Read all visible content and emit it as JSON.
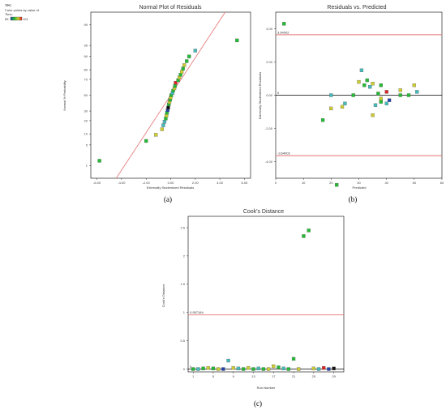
{
  "legend": {
    "title": "TPC",
    "subtitle_line1": "Color points by value of",
    "subtitle_line2": "Time:",
    "range_low": "65",
    "range_high": "113"
  },
  "captions": {
    "a": "(a)",
    "b": "(b)",
    "c": "(c)"
  },
  "colors": {
    "limit_line": "#e57373",
    "fit_line": "#e57373",
    "axis": "#000000"
  },
  "chart_data": [
    {
      "type": "scatter",
      "title": "Normal Plot of Residuals",
      "xlabel": "Externally Studentized Residuals",
      "ylabel": "Normal % Probability",
      "xlim": [
        -6.5,
        6.5
      ],
      "xticks": [
        -6,
        -4,
        -2,
        0,
        2,
        4,
        6
      ],
      "xtick_labels": [
        "-6.00",
        "-4.00",
        "-2.00",
        "0.00",
        "2.00",
        "4.00",
        "6.00"
      ],
      "yticks": [
        1,
        5,
        10,
        20,
        30,
        50,
        70,
        80,
        90,
        95,
        99
      ],
      "ylim": [
        0.3,
        99.7
      ],
      "grid": false,
      "points": [
        {
          "x": -5.8,
          "y": 1.5,
          "c": "#22bb33"
        },
        {
          "x": -2.0,
          "y": 6.5,
          "c": "#22bb33"
        },
        {
          "x": -1.2,
          "y": 9.5,
          "c": "#cccc33"
        },
        {
          "x": -0.7,
          "y": 13,
          "c": "#cccc33"
        },
        {
          "x": -0.6,
          "y": 16,
          "c": "#44bbbb"
        },
        {
          "x": -0.5,
          "y": 19,
          "c": "#44bbbb"
        },
        {
          "x": -0.4,
          "y": 22,
          "c": "#22bb33"
        },
        {
          "x": -0.35,
          "y": 25,
          "c": "#cccc33"
        },
        {
          "x": -0.3,
          "y": 28,
          "c": "#22bb33"
        },
        {
          "x": -0.25,
          "y": 31,
          "c": "#2244aa"
        },
        {
          "x": -0.2,
          "y": 34,
          "c": "#111111"
        },
        {
          "x": -0.15,
          "y": 38,
          "c": "#22bb33"
        },
        {
          "x": -0.1,
          "y": 41,
          "c": "#cccc33"
        },
        {
          "x": -0.05,
          "y": 44,
          "c": "#22bb33"
        },
        {
          "x": 0.0,
          "y": 47,
          "c": "#cccc33"
        },
        {
          "x": 0.05,
          "y": 50,
          "c": "#22bb33"
        },
        {
          "x": 0.15,
          "y": 53,
          "c": "#44bbbb"
        },
        {
          "x": 0.2,
          "y": 56,
          "c": "#22bb33"
        },
        {
          "x": 0.3,
          "y": 59,
          "c": "#cccc33"
        },
        {
          "x": 0.35,
          "y": 62,
          "c": "#22bb33"
        },
        {
          "x": 0.4,
          "y": 66,
          "c": "#dd2222"
        },
        {
          "x": 0.6,
          "y": 69,
          "c": "#22bb33"
        },
        {
          "x": 0.7,
          "y": 72,
          "c": "#cccc33"
        },
        {
          "x": 0.8,
          "y": 75,
          "c": "#22bb33"
        },
        {
          "x": 0.9,
          "y": 78,
          "c": "#cccc33"
        },
        {
          "x": 1.0,
          "y": 81,
          "c": "#22bb33"
        },
        {
          "x": 1.1,
          "y": 84,
          "c": "#cccc33"
        },
        {
          "x": 1.3,
          "y": 87,
          "c": "#22bb33"
        },
        {
          "x": 1.5,
          "y": 90,
          "c": "#22bb33"
        },
        {
          "x": 2.0,
          "y": 93,
          "c": "#44bbbb"
        },
        {
          "x": 5.4,
          "y": 96.5,
          "c": "#22bb33"
        }
      ]
    },
    {
      "type": "scatter",
      "title": "Residuals vs. Predicted",
      "xlabel": "Predicted",
      "ylabel": "Externally Studentized Residuals",
      "xlim": [
        0,
        60
      ],
      "xticks": [
        0,
        10,
        20,
        30,
        40,
        50,
        60
      ],
      "ylim": [
        -5,
        5
      ],
      "yticks": [
        -4,
        -2,
        0,
        2,
        4
      ],
      "ytick_labels": [
        "-4.00",
        "-2.00",
        "0.00",
        "2.00",
        "4.00"
      ],
      "limits": [
        3.64002,
        -3.64002
      ],
      "limit_labels": [
        "3.64002",
        "-3.64002"
      ],
      "zero_label": "0",
      "grid": false,
      "points": [
        {
          "x": 3,
          "y": 4.3,
          "c": "#22bb33"
        },
        {
          "x": 17,
          "y": -1.5,
          "c": "#22bb33"
        },
        {
          "x": 20,
          "y": 0.0,
          "c": "#44bbbb"
        },
        {
          "x": 20,
          "y": -0.8,
          "c": "#cccc33"
        },
        {
          "x": 22,
          "y": -5.4,
          "c": "#22bb33"
        },
        {
          "x": 24,
          "y": -0.7,
          "c": "#cccc33"
        },
        {
          "x": 25,
          "y": -0.5,
          "c": "#44bbbb"
        },
        {
          "x": 28,
          "y": 0.0,
          "c": "#22bb33"
        },
        {
          "x": 30,
          "y": 0.8,
          "c": "#cccc33"
        },
        {
          "x": 31,
          "y": 1.5,
          "c": "#44bbbb"
        },
        {
          "x": 32,
          "y": 0.6,
          "c": "#22bb33"
        },
        {
          "x": 33,
          "y": 0.9,
          "c": "#22bb33"
        },
        {
          "x": 34,
          "y": 0.5,
          "c": "#44bbbb"
        },
        {
          "x": 35,
          "y": 0.7,
          "c": "#cccc33"
        },
        {
          "x": 35,
          "y": -1.2,
          "c": "#cccc33"
        },
        {
          "x": 36,
          "y": -0.6,
          "c": "#44bbbb"
        },
        {
          "x": 37,
          "y": 0.1,
          "c": "#22bb33"
        },
        {
          "x": 38,
          "y": -0.2,
          "c": "#cccc33"
        },
        {
          "x": 38,
          "y": 0.6,
          "c": "#22bb33"
        },
        {
          "x": 38,
          "y": -0.4,
          "c": "#22bb33"
        },
        {
          "x": 40,
          "y": 0.2,
          "c": "#dd2222"
        },
        {
          "x": 40,
          "y": -0.5,
          "c": "#44bbbb"
        },
        {
          "x": 41,
          "y": -0.3,
          "c": "#2244aa"
        },
        {
          "x": 45,
          "y": 0.3,
          "c": "#cccc33"
        },
        {
          "x": 45,
          "y": 0.0,
          "c": "#22bb33"
        },
        {
          "x": 48,
          "y": 0.0,
          "c": "#22bb33"
        },
        {
          "x": 50,
          "y": 0.6,
          "c": "#cccc33"
        },
        {
          "x": 51,
          "y": 0.2,
          "c": "#44bbbb"
        }
      ]
    },
    {
      "type": "scatter",
      "title": "Cook's Distance",
      "xlabel": "Run Number",
      "ylabel": "Cook's Distance",
      "xlim": [
        0,
        31
      ],
      "xticks": [
        1,
        5,
        9,
        13,
        17,
        21,
        25,
        29
      ],
      "ylim": [
        -0.05,
        2.7
      ],
      "yticks": [
        0,
        0.5,
        1,
        1.5,
        2,
        2.5
      ],
      "ytick_labels": [
        "0",
        "0.5",
        "1",
        "1.5",
        "2",
        "2.5"
      ],
      "limit": 0.957184,
      "limit_label": "0.957184",
      "zero_label": "0",
      "grid": false,
      "points": [
        {
          "x": 1,
          "y": 0.0,
          "c": "#22bb33"
        },
        {
          "x": 2,
          "y": 0.0,
          "c": "#44bbbb"
        },
        {
          "x": 3,
          "y": 0.01,
          "c": "#22bb33"
        },
        {
          "x": 4,
          "y": 0.02,
          "c": "#cccc33"
        },
        {
          "x": 5,
          "y": 0.01,
          "c": "#22bb33"
        },
        {
          "x": 6,
          "y": 0.0,
          "c": "#cccc33"
        },
        {
          "x": 7,
          "y": 0.0,
          "c": "#2244aa"
        },
        {
          "x": 8,
          "y": 0.15,
          "c": "#44bbbb"
        },
        {
          "x": 9,
          "y": 0.02,
          "c": "#cccc33"
        },
        {
          "x": 10,
          "y": 0.01,
          "c": "#44bbbb"
        },
        {
          "x": 11,
          "y": 0.0,
          "c": "#22bb33"
        },
        {
          "x": 12,
          "y": 0.02,
          "c": "#cccc33"
        },
        {
          "x": 13,
          "y": 0.0,
          "c": "#22bb33"
        },
        {
          "x": 14,
          "y": 0.01,
          "c": "#44bbbb"
        },
        {
          "x": 15,
          "y": 0.0,
          "c": "#22bb33"
        },
        {
          "x": 16,
          "y": 0.0,
          "c": "#cccc33"
        },
        {
          "x": 17,
          "y": 0.05,
          "c": "#cccc33"
        },
        {
          "x": 18,
          "y": 0.03,
          "c": "#22bb33"
        },
        {
          "x": 19,
          "y": 0.01,
          "c": "#44bbbb"
        },
        {
          "x": 20,
          "y": 0.0,
          "c": "#22bb33"
        },
        {
          "x": 21,
          "y": 0.18,
          "c": "#22bb33"
        },
        {
          "x": 22,
          "y": 0.0,
          "c": "#cccc33"
        },
        {
          "x": 23,
          "y": 2.35,
          "c": "#22bb33"
        },
        {
          "x": 24,
          "y": 2.45,
          "c": "#22bb33"
        },
        {
          "x": 25,
          "y": 0.01,
          "c": "#cccc33"
        },
        {
          "x": 26,
          "y": 0.0,
          "c": "#44bbbb"
        },
        {
          "x": 27,
          "y": 0.02,
          "c": "#dd2222"
        },
        {
          "x": 28,
          "y": 0.0,
          "c": "#2244aa"
        },
        {
          "x": 29,
          "y": 0.01,
          "c": "#111111"
        }
      ]
    }
  ]
}
